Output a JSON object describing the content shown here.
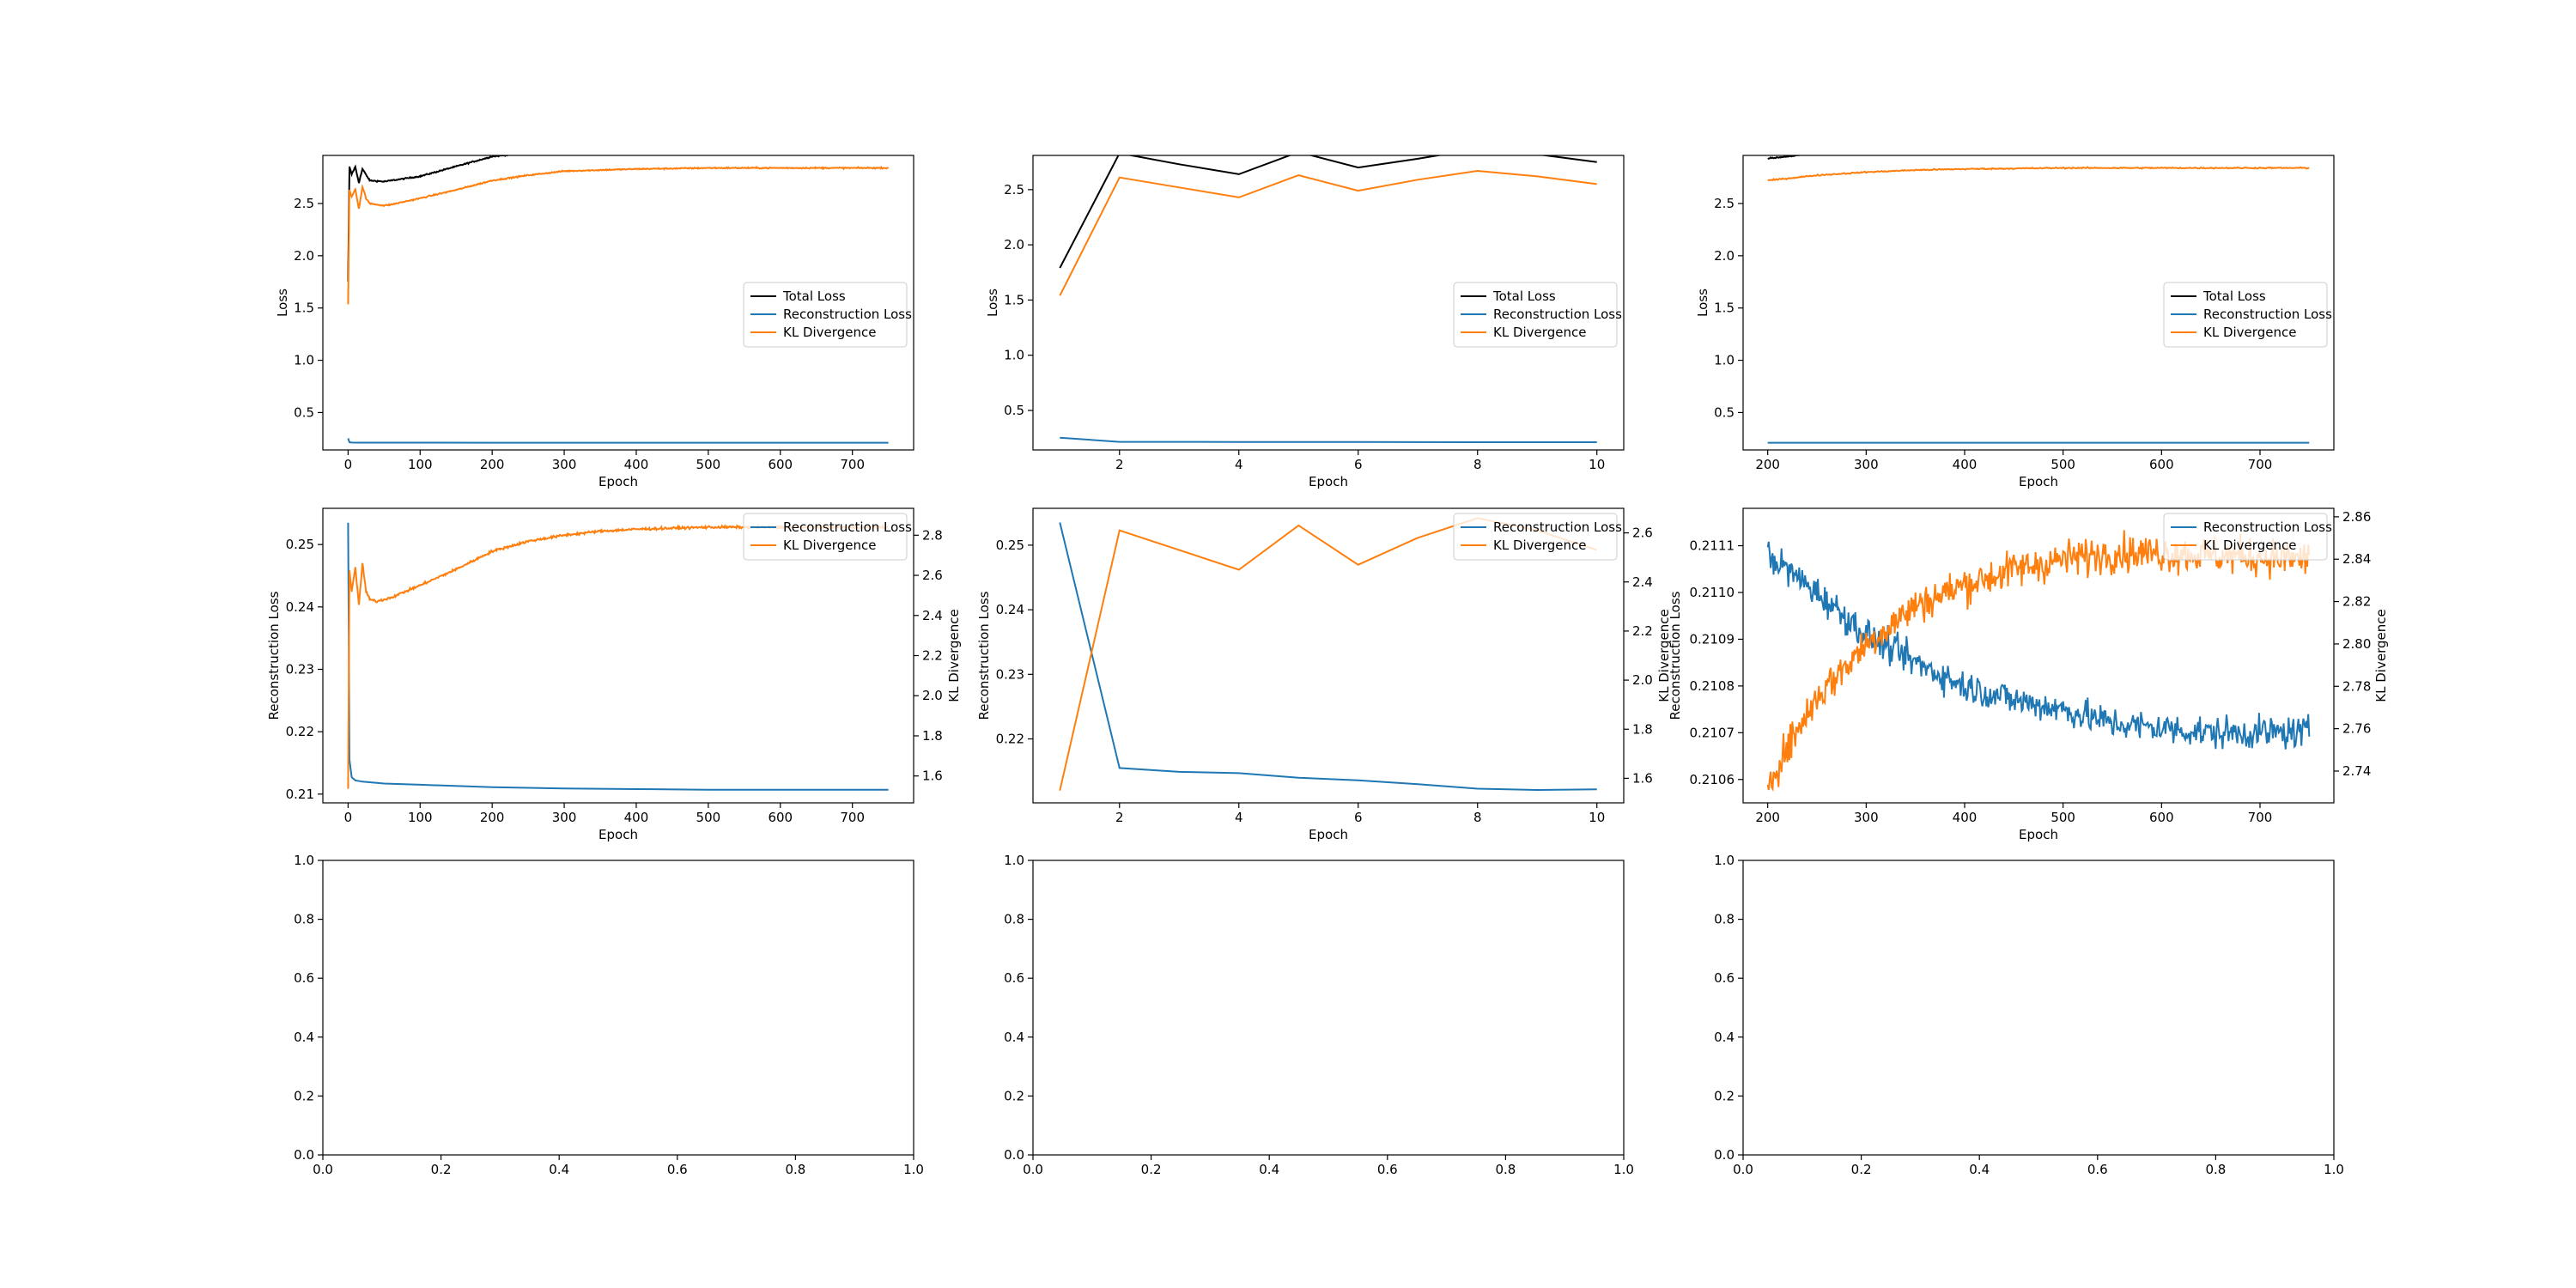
{
  "colors": {
    "total": "#000000",
    "recon": "#1f77b4",
    "kl": "#ff7f0e",
    "axes": "#000000",
    "background": "#ffffff"
  },
  "chart_data": [
    {
      "type": "line",
      "xlabel": "Epoch",
      "ylabel": "Loss",
      "xlim": [
        -35,
        785
      ],
      "ylim": [
        0.142,
        2.96
      ],
      "xticks": [
        "0",
        "100",
        "200",
        "300",
        "400",
        "500",
        "600",
        "700"
      ],
      "yticks": [
        "0.5",
        "1.0",
        "1.5",
        "2.0",
        "2.5"
      ],
      "legend": "center-right",
      "series": [
        {
          "name": "Total Loss",
          "color": "#000000",
          "x": [
            0,
            2,
            5,
            10,
            15,
            20,
            30,
            50,
            100,
            200,
            300,
            400,
            500,
            600,
            750
          ],
          "y": [
            1.75,
            2.85,
            2.78,
            2.85,
            2.7,
            2.83,
            2.72,
            2.71,
            2.76,
            2.95,
            3.02,
            3.05,
            3.05,
            3.05,
            3.05
          ]
        },
        {
          "name": "Reconstruction Loss",
          "color": "#1f77b4",
          "x": [
            0,
            2,
            5,
            10,
            20,
            50,
            100,
            200,
            300,
            400,
            500,
            600,
            750
          ],
          "y": [
            0.253,
            0.215,
            0.2125,
            0.2122,
            0.212,
            0.2117,
            0.2115,
            0.2111,
            0.2109,
            0.2108,
            0.2107,
            0.2107,
            0.2107
          ]
        },
        {
          "name": "KL Divergence",
          "color": "#ff7f0e",
          "x": [
            0,
            2,
            5,
            10,
            15,
            20,
            25,
            30,
            40,
            50,
            60,
            80,
            100,
            150,
            200,
            250,
            300,
            350,
            400,
            450,
            500,
            550,
            600,
            650,
            700,
            750
          ],
          "y": [
            1.53,
            2.63,
            2.56,
            2.64,
            2.45,
            2.66,
            2.55,
            2.5,
            2.49,
            2.48,
            2.49,
            2.52,
            2.55,
            2.63,
            2.72,
            2.77,
            2.81,
            2.82,
            2.83,
            2.835,
            2.84,
            2.84,
            2.84,
            2.84,
            2.84,
            2.84
          ]
        }
      ]
    },
    {
      "type": "line",
      "xlabel": "Epoch",
      "ylabel": "Loss",
      "xlim": [
        0.55,
        10.45
      ],
      "ylim": [
        0.142,
        2.81
      ],
      "xticks": [
        "2",
        "4",
        "6",
        "8",
        "10"
      ],
      "yticks": [
        "0.5",
        "1.0",
        "1.5",
        "2.0",
        "2.5"
      ],
      "legend": "center-right",
      "series": [
        {
          "name": "Total Loss",
          "color": "#000000",
          "x": [
            1,
            2,
            3,
            4,
            5,
            6,
            7,
            8,
            9,
            10
          ],
          "y": [
            1.79,
            2.83,
            2.73,
            2.64,
            2.84,
            2.7,
            2.78,
            2.87,
            2.82,
            2.75
          ]
        },
        {
          "name": "Reconstruction Loss",
          "color": "#1f77b4",
          "x": [
            1,
            2,
            3,
            4,
            5,
            6,
            7,
            8,
            9,
            10
          ],
          "y": [
            0.2535,
            0.2155,
            0.2149,
            0.2147,
            0.214,
            0.2136,
            0.213,
            0.2123,
            0.2121,
            0.2122
          ]
        },
        {
          "name": "KL Divergence",
          "color": "#ff7f0e",
          "x": [
            1,
            2,
            3,
            4,
            5,
            6,
            7,
            8,
            9,
            10
          ],
          "y": [
            1.54,
            2.61,
            2.52,
            2.43,
            2.63,
            2.49,
            2.59,
            2.67,
            2.62,
            2.55
          ]
        }
      ]
    },
    {
      "type": "line",
      "xlabel": "Epoch",
      "ylabel": "Loss",
      "xlim": [
        175,
        775
      ],
      "ylim": [
        0.142,
        2.96
      ],
      "xticks": [
        "200",
        "300",
        "400",
        "500",
        "600",
        "700"
      ],
      "yticks": [
        "0.5",
        "1.0",
        "1.5",
        "2.0",
        "2.5"
      ],
      "legend": "center-right",
      "series": [
        {
          "name": "Total Loss",
          "color": "#000000",
          "x": [
            200,
            250,
            300,
            350,
            400,
            450,
            500,
            550,
            600,
            650,
            700,
            750
          ],
          "y": [
            2.93,
            2.98,
            3.01,
            3.03,
            3.04,
            3.05,
            3.05,
            3.05,
            3.05,
            3.05,
            3.05,
            3.05
          ]
        },
        {
          "name": "Reconstruction Loss",
          "color": "#1f77b4",
          "x": [
            200,
            300,
            400,
            500,
            600,
            700,
            750
          ],
          "y": [
            0.2111,
            0.2109,
            0.2108,
            0.2107,
            0.2107,
            0.2107,
            0.2107
          ]
        },
        {
          "name": "KL Divergence",
          "color": "#ff7f0e",
          "x": [
            200,
            250,
            300,
            350,
            400,
            450,
            500,
            550,
            600,
            650,
            700,
            750
          ],
          "y": [
            2.72,
            2.77,
            2.8,
            2.82,
            2.83,
            2.835,
            2.84,
            2.84,
            2.84,
            2.84,
            2.84,
            2.84
          ]
        }
      ]
    },
    {
      "type": "line",
      "xlabel": "Epoch",
      "ylabel": "Reconstruction Loss",
      "y2label": "KL Divergence",
      "xlim": [
        -35,
        785
      ],
      "ylim": [
        0.2086,
        0.2558
      ],
      "y2lim": [
        1.466,
        2.934
      ],
      "xticks": [
        "0",
        "100",
        "200",
        "300",
        "400",
        "500",
        "600",
        "700"
      ],
      "yticks": [
        "0.21",
        "0.22",
        "0.23",
        "0.24",
        "0.25"
      ],
      "y2ticks": [
        "1.6",
        "1.8",
        "2.0",
        "2.2",
        "2.4",
        "2.6",
        "2.8"
      ],
      "legend": "top-right",
      "series": [
        {
          "name": "Reconstruction Loss",
          "color": "#1f77b4",
          "axis": "left",
          "x": [
            0,
            2,
            5,
            10,
            20,
            50,
            100,
            200,
            300,
            400,
            500,
            600,
            750
          ],
          "y": [
            0.2535,
            0.2155,
            0.2127,
            0.2122,
            0.212,
            0.2117,
            0.2115,
            0.2111,
            0.2109,
            0.2108,
            0.2107,
            0.2107,
            0.2107
          ]
        },
        {
          "name": "KL Divergence",
          "color": "#ff7f0e",
          "axis": "right",
          "x": [
            0,
            2,
            5,
            10,
            15,
            20,
            25,
            30,
            40,
            50,
            60,
            80,
            100,
            150,
            200,
            250,
            300,
            350,
            400,
            450,
            500,
            550,
            600,
            650,
            700,
            750
          ],
          "y": [
            1.54,
            2.62,
            2.52,
            2.64,
            2.45,
            2.66,
            2.52,
            2.48,
            2.47,
            2.48,
            2.49,
            2.52,
            2.55,
            2.63,
            2.72,
            2.77,
            2.8,
            2.82,
            2.83,
            2.835,
            2.84,
            2.84,
            2.84,
            2.84,
            2.84,
            2.84
          ]
        }
      ]
    },
    {
      "type": "line",
      "xlabel": "Epoch",
      "ylabel": "Reconstruction Loss",
      "y2label": "KL Divergence",
      "xlim": [
        0.55,
        10.45
      ],
      "ylim": [
        0.2101,
        0.2557
      ],
      "y2lim": [
        1.5,
        2.7
      ],
      "xticks": [
        "2",
        "4",
        "6",
        "8",
        "10"
      ],
      "yticks": [
        "0.22",
        "0.23",
        "0.24",
        "0.25"
      ],
      "y2ticks": [
        "1.6",
        "1.8",
        "2.0",
        "2.2",
        "2.4",
        "2.6"
      ],
      "legend": "top-right",
      "series": [
        {
          "name": "Reconstruction Loss",
          "color": "#1f77b4",
          "axis": "left",
          "x": [
            1,
            2,
            3,
            4,
            5,
            6,
            7,
            8,
            9,
            10
          ],
          "y": [
            0.2535,
            0.2155,
            0.2149,
            0.2147,
            0.214,
            0.2136,
            0.213,
            0.2123,
            0.2121,
            0.2122
          ]
        },
        {
          "name": "KL Divergence",
          "color": "#ff7f0e",
          "axis": "right",
          "x": [
            1,
            2,
            3,
            4,
            5,
            6,
            7,
            8,
            9,
            10
          ],
          "y": [
            1.55,
            2.61,
            2.53,
            2.45,
            2.63,
            2.47,
            2.58,
            2.66,
            2.61,
            2.53
          ]
        }
      ]
    },
    {
      "type": "line",
      "xlabel": "Epoch",
      "ylabel": "Reconstruction Loss",
      "y2label": "KL Divergence",
      "xlim": [
        175,
        775
      ],
      "ylim": [
        0.21055,
        0.21118
      ],
      "y2lim": [
        2.725,
        2.864
      ],
      "xticks": [
        "200",
        "300",
        "400",
        "500",
        "600",
        "700"
      ],
      "yticks": [
        "0.2106",
        "0.2107",
        "0.2108",
        "0.2109",
        "0.2110",
        "0.2111"
      ],
      "y2ticks": [
        "2.74",
        "2.76",
        "2.78",
        "2.80",
        "2.82",
        "2.84",
        "2.86"
      ],
      "legend": "top-right",
      "noise": {
        "recon": 3.5e-05,
        "kl": 0.009
      },
      "series": [
        {
          "name": "Reconstruction Loss",
          "color": "#1f77b4",
          "axis": "left",
          "x": [
            200,
            250,
            300,
            350,
            400,
            450,
            500,
            550,
            600,
            650,
            700,
            750
          ],
          "y": [
            0.21108,
            0.211,
            0.21091,
            0.21085,
            0.2108,
            0.21077,
            0.21075,
            0.21072,
            0.21071,
            0.2107,
            0.2107,
            0.2107
          ]
        },
        {
          "name": "KL Divergence",
          "color": "#ff7f0e",
          "axis": "right",
          "x": [
            200,
            250,
            300,
            350,
            400,
            450,
            500,
            550,
            600,
            650,
            700,
            750
          ],
          "y": [
            2.735,
            2.775,
            2.8,
            2.818,
            2.828,
            2.835,
            2.84,
            2.843,
            2.843,
            2.842,
            2.841,
            2.84
          ]
        }
      ]
    },
    {
      "type": "line",
      "xlabel": "",
      "ylabel": "",
      "xlim": [
        0,
        1
      ],
      "ylim": [
        0,
        1
      ],
      "xticks": [
        "0.0",
        "0.2",
        "0.4",
        "0.6",
        "0.8",
        "1.0"
      ],
      "yticks": [
        "0.0",
        "0.2",
        "0.4",
        "0.6",
        "0.8",
        "1.0"
      ],
      "series": []
    },
    {
      "type": "line",
      "xlabel": "",
      "ylabel": "",
      "xlim": [
        0,
        1
      ],
      "ylim": [
        0,
        1
      ],
      "xticks": [
        "0.0",
        "0.2",
        "0.4",
        "0.6",
        "0.8",
        "1.0"
      ],
      "yticks": [
        "0.0",
        "0.2",
        "0.4",
        "0.6",
        "0.8",
        "1.0"
      ],
      "series": []
    },
    {
      "type": "line",
      "xlabel": "",
      "ylabel": "",
      "xlim": [
        0,
        1
      ],
      "ylim": [
        0,
        1
      ],
      "xticks": [
        "0.0",
        "0.2",
        "0.4",
        "0.6",
        "0.8",
        "1.0"
      ],
      "yticks": [
        "0.0",
        "0.2",
        "0.4",
        "0.6",
        "0.8",
        "1.0"
      ],
      "series": []
    }
  ]
}
